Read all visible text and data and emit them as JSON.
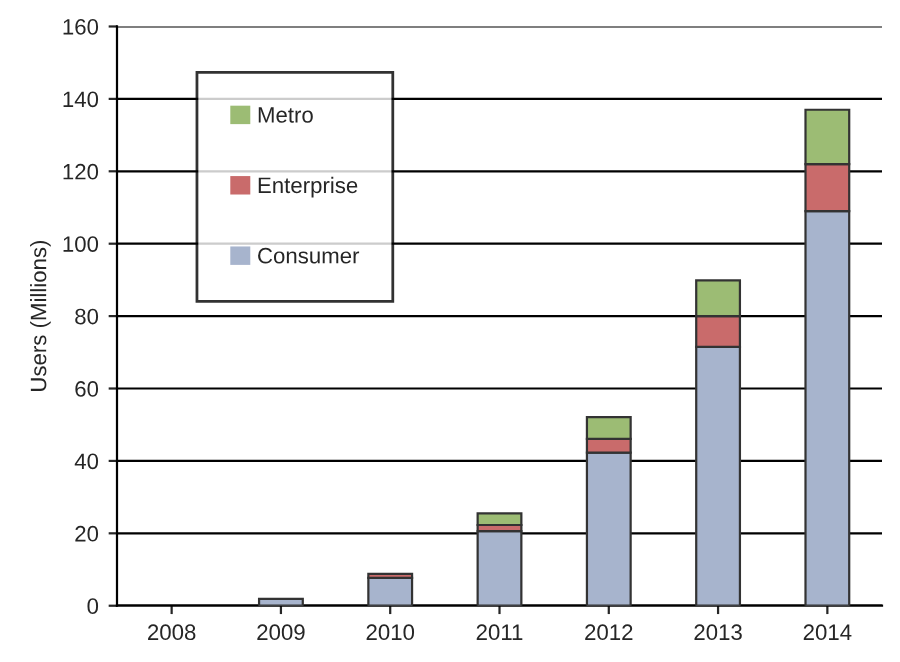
{
  "chart_data": {
    "type": "bar",
    "ylabel": "Users (Millions)",
    "categories": [
      "2008",
      "2009",
      "2010",
      "2011",
      "2012",
      "2013",
      "2014"
    ],
    "stacked": true,
    "series": [
      {
        "name": "Consumer",
        "color": "#a7b4cd",
        "values": [
          0,
          1.9,
          7.7,
          20.6,
          42.3,
          71.5,
          109
        ]
      },
      {
        "name": "Enterprise",
        "color": "#c96b6b",
        "values": [
          0,
          0,
          1.1,
          1.7,
          3.8,
          8.5,
          13
        ]
      },
      {
        "name": "Metro",
        "color": "#9cbc74",
        "values": [
          0,
          0,
          0,
          3.2,
          6,
          9.9,
          15
        ]
      }
    ],
    "ylim": [
      0,
      160
    ],
    "yticks": [
      0,
      20,
      40,
      60,
      80,
      100,
      120,
      140,
      160
    ],
    "grid": "y",
    "legend": "top left"
  }
}
